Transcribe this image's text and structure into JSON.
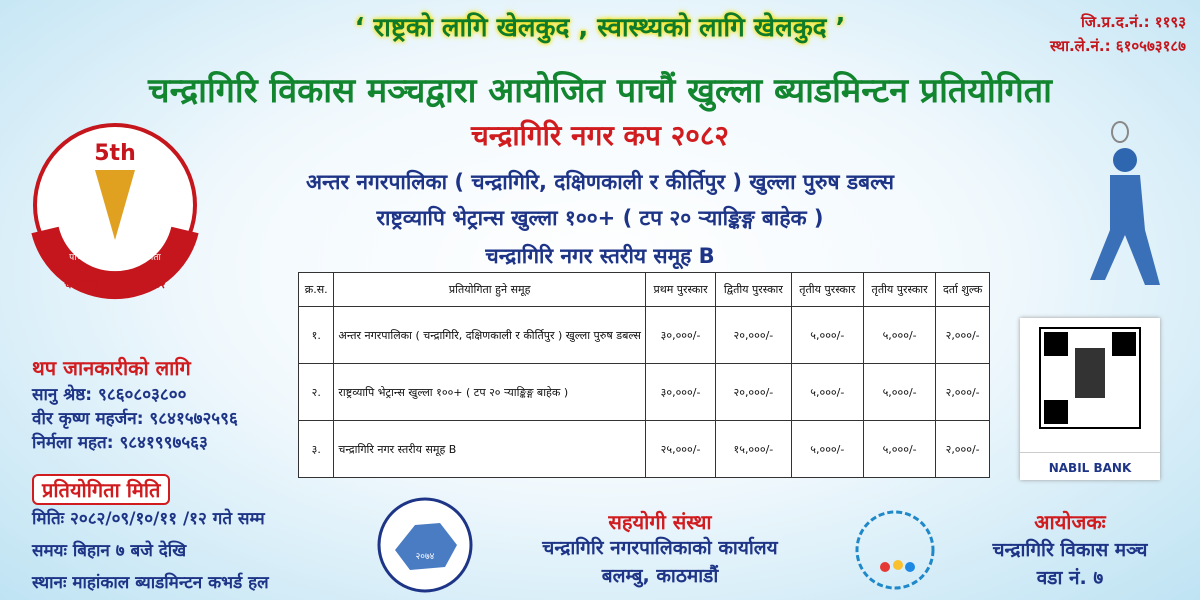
{
  "header": {
    "slogan": "‘ राष्ट्रको लागि खेलकुद , स्वास्थ्यको लागि खेलकुद ’",
    "registration": [
      "जि.प्र.द.नं.: ११९३",
      "स्था.ले.नं.: ६१०५७३१८७"
    ],
    "title": "चन्द्रागिरि विकास मञ्चद्वारा आयोजित पाचौं खुल्ला ब्याडमिन्टन प्रतियोगिता",
    "subtitle": "चन्द्रागिरि नगर कप २०८२",
    "events": [
      "अन्तर नगरपालिका ( चन्द्रागिरि, दक्षिणकाली र कीर्तिपुर ) खुल्ला पुरुष डबल्स",
      "राष्ट्रव्यापि भेट्रान्स खुल्ला १००+ ( टप २० र्‍याङ्किङ्ग बाहेक )",
      "चन्द्रागिरि नगर स्तरीय समूह B"
    ]
  },
  "logo": {
    "edition": "5th",
    "ring_top": "पाचौं ब्याडमिन्टन प्रतियोगिता",
    "ring_bottom": "चन्द्रागिरि नगर कप २०८२"
  },
  "table": {
    "header": [
      "क्र.स.",
      "प्रतियोगिता हुने समूह",
      "प्रथम पुरस्कार",
      "द्वितीय पुरस्कार",
      "तृतीय पुरस्कार",
      "तृतीय पुरस्कार",
      "दर्ता शुल्क"
    ],
    "rows": [
      [
        "१.",
        "अन्तर नगरपालिका ( चन्द्रागिरि, दक्षिणकाली र कीर्तिपुर ) खुल्ला पुरुष डबल्स",
        "३०,०००/-",
        "२०,०००/-",
        "५,०००/-",
        "५,०००/-",
        "२,०००/-"
      ],
      [
        "२.",
        "राष्ट्रव्यापि भेट्रान्स खुल्ला १००+ ( टप २० र्‍याङ्किङ्ग बाहेक )",
        "३०,०००/-",
        "२०,०००/-",
        "५,०००/-",
        "५,०००/-",
        "२,०००/-"
      ],
      [
        "३.",
        "चन्द्रागिरि नगर स्तरीय समूह B",
        "२५,०००/-",
        "१५,०००/-",
        "५,०००/-",
        "५,०००/-",
        "२,०००/-"
      ]
    ]
  },
  "contact": {
    "title": "थप जानकारीको लागि",
    "lines": [
      "सानु श्रेष्ठ: ९८६०८०३८००",
      "वीर कृष्ण महर्जन: ९८४१५७२५९६",
      "निर्मला महत: ९८४१९९७५६३"
    ]
  },
  "schedule": {
    "title": "प्रतियोगिता मिति",
    "lines": [
      "मितिः २०८२/०९/१०/११ /१२ गते सम्म",
      "समयः बिहान ७ बजे देखि",
      "स्थानः  माहांकाल ब्याडमिन्टन कभर्ड हल"
    ]
  },
  "emblem": {
    "year": "२०७४"
  },
  "sponsor": {
    "title": "सहयोगी संस्था",
    "lines": [
      "चन्द्रागिरि नगरपालिकाको कार्यालय",
      "बलम्बु, काठमाडौं"
    ]
  },
  "organizer": {
    "title": "आयोजकः",
    "lines": [
      "चन्द्रागिरि विकास मञ्च",
      "वडा नं. ७"
    ]
  },
  "bank": {
    "name": "NABIL BANK"
  }
}
